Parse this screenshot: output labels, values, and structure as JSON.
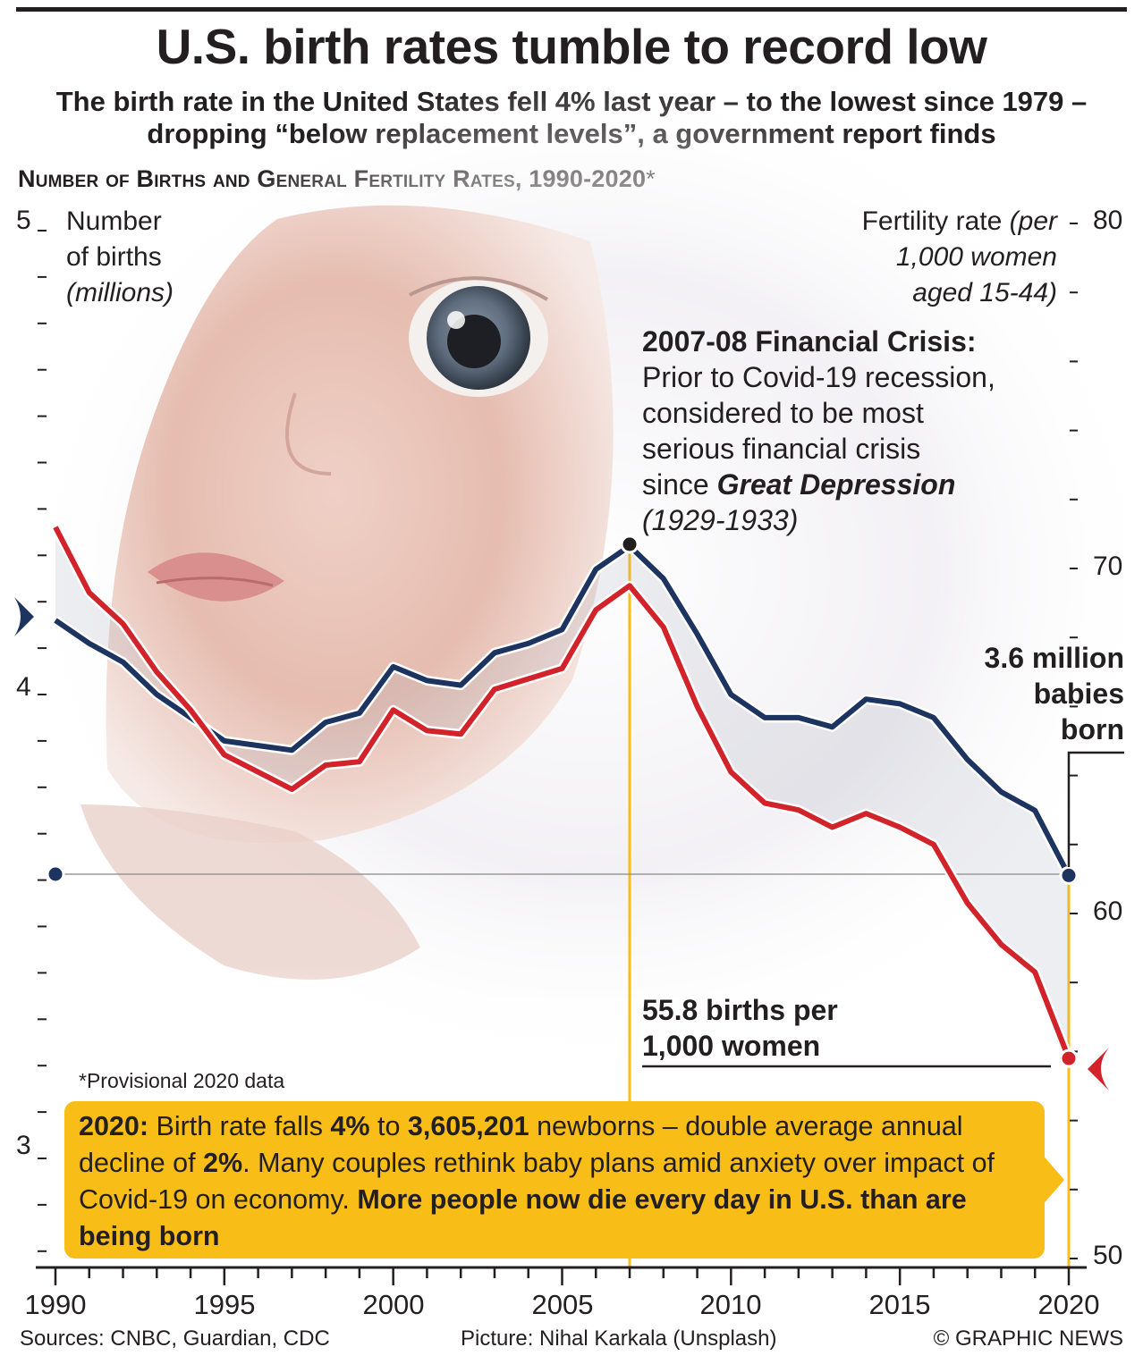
{
  "title": "U.S. birth rates tumble to record low",
  "subtitle": "The birth rate in the United States fell 4% last year – to the lowest since 1979 – dropping “below replacement levels”, a government report finds",
  "chart_title": "Number of Births and General Fertility Rates, 1990-2020",
  "chart_title_mark": "*",
  "left_axis": {
    "line1": "Number",
    "line2": "of births",
    "line3": "(millions)",
    "ticks": [
      "5",
      "4",
      "3"
    ]
  },
  "right_axis": {
    "line1_plain": "Fertility rate ",
    "line1_italic": "(per",
    "line2": "1,000 women",
    "line3": "aged 15-44)",
    "ticks": [
      "80",
      "70",
      "60",
      "50"
    ]
  },
  "x_ticks": [
    "1990",
    "1995",
    "2000",
    "2005",
    "2010",
    "2015",
    "2020"
  ],
  "crisis": {
    "heading": "2007-08 Financial Crisis:",
    "line1": "Prior to Covid-19 recession,",
    "line2": "considered to be most",
    "line3": "serious financial crisis",
    "line4_plain": "since ",
    "line4_bold": "Great Depression",
    "line5": "(1929-1933)"
  },
  "births_label": {
    "line1": "3.6 million",
    "line2": "babies",
    "line3": "born"
  },
  "rate_label": {
    "line1": "55.8 births per",
    "line2": "1,000 women"
  },
  "footnote": "*Provisional 2020 data",
  "callout": {
    "p1": "2020:",
    "p2": " Birth rate falls ",
    "p3": "4%",
    "p4": " to ",
    "p5": "3,605,201",
    "p6": " newborns – double average annual decline of ",
    "p7": "2%",
    "p8": ". Many couples rethink baby plans amid anxiety over impact of Covid-19 on economy. ",
    "p9": "More people now die every day in U.S. than are being born"
  },
  "footer": {
    "sources": "Sources: CNBC, Guardian, CDC",
    "picture": "Picture: Nihal Karkala (Unsplash)",
    "credit": "© GRAPHIC NEWS"
  },
  "colors": {
    "births": "#1d3461",
    "fertility": "#d2232a",
    "accent": "#f8bd16",
    "text": "#231f20"
  },
  "chart_data": {
    "type": "line",
    "x": [
      1990,
      1991,
      1992,
      1993,
      1994,
      1995,
      1996,
      1997,
      1998,
      1999,
      2000,
      2001,
      2002,
      2003,
      2004,
      2005,
      2006,
      2007,
      2008,
      2009,
      2010,
      2011,
      2012,
      2013,
      2014,
      2015,
      2016,
      2017,
      2018,
      2019,
      2020
    ],
    "xlim": [
      1990,
      2020
    ],
    "series": [
      {
        "axis": "left",
        "unit": "millions",
        "values": [
          4.16,
          4.11,
          4.07,
          4.0,
          3.95,
          3.9,
          3.89,
          3.88,
          3.94,
          3.96,
          4.06,
          4.03,
          4.02,
          4.09,
          4.11,
          4.14,
          4.27,
          4.32,
          4.25,
          4.13,
          4.0,
          3.95,
          3.95,
          3.93,
          3.99,
          3.98,
          3.95,
          3.86,
          3.79,
          3.75,
          3.61
        ]
      },
      {
        "axis": "right",
        "unit": "births per 1,000 women aged 15-44",
        "values": [
          71.2,
          69.3,
          68.4,
          67.0,
          65.9,
          64.6,
          64.1,
          63.6,
          64.3,
          64.4,
          65.9,
          65.3,
          65.2,
          66.5,
          66.8,
          67.1,
          68.8,
          69.5,
          68.3,
          66.0,
          64.1,
          63.2,
          63.0,
          62.5,
          62.9,
          62.5,
          62.0,
          60.3,
          59.1,
          58.3,
          55.8
        ]
      }
    ],
    "ylim_left": [
      2.75,
      5.0
    ],
    "ylim_right": [
      50,
      80
    ]
  }
}
